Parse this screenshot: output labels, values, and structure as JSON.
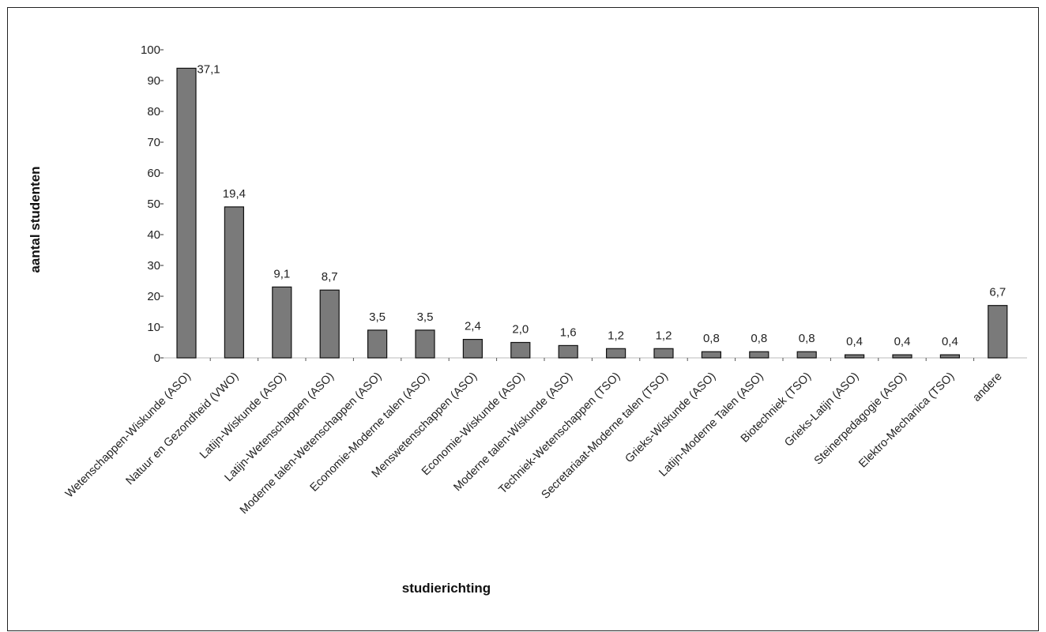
{
  "chart_data": {
    "type": "bar",
    "title": "",
    "xlabel": "studierichting",
    "ylabel": "aantal studenten",
    "ylim": [
      0,
      100
    ],
    "yticks": [
      0,
      10,
      20,
      30,
      40,
      50,
      60,
      70,
      80,
      90,
      100
    ],
    "grid": false,
    "bar_color": "#7a7a7a",
    "categories": [
      "Wetenschappen-Wiskunde (ASO)",
      "Natuur en Gezondheid (VWO)",
      "Latijn-Wiskunde (ASO)",
      "Latijn-Wetenschappen (ASO)",
      "Moderne talen-Wetenschappen (ASO)",
      "Economie-Moderne talen (ASO)",
      "Menswetenschappen (ASO)",
      "Economie-Wiskunde (ASO)",
      "Moderne talen-Wiskunde (ASO)",
      "Techniek-Wetenschappen (TSO)",
      "Secretariaat-Moderne talen (TSO)",
      "Grieks-Wiskunde (ASO)",
      "Latijn-Moderne Talen (ASO)",
      "Biotechniek (TSO)",
      "Grieks-Latijn (ASO)",
      "Steinerpedagogie (ASO)",
      "Elektro-Mechanica (TSO)",
      "andere"
    ],
    "values": [
      94,
      49,
      23,
      22,
      9,
      9,
      6,
      5,
      4,
      3,
      3,
      2,
      2,
      2,
      1,
      1,
      1,
      17
    ],
    "data_labels": [
      "37,1",
      "19,4",
      "9,1",
      "8,7",
      "3,5",
      "3,5",
      "2,4",
      "2,0",
      "1,6",
      "1,2",
      "1,2",
      "0,8",
      "0,8",
      "0,8",
      "0,4",
      "0,4",
      "0,4",
      "6,7"
    ]
  }
}
